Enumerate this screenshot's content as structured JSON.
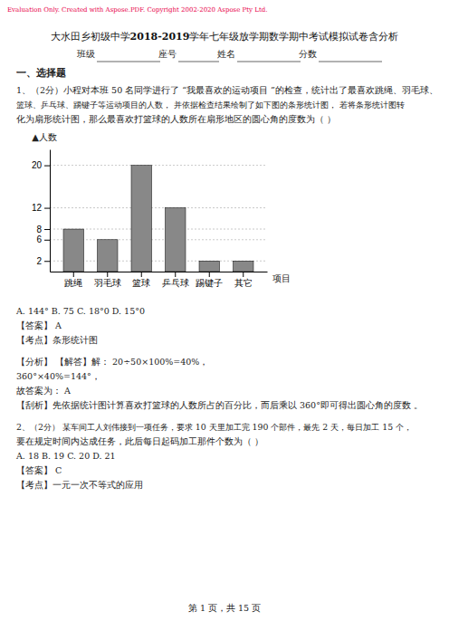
{
  "watermark": "Evaluation Only. Created with Aspose.PDF. Copyright 2002-2020 Aspose Pty Ltd.",
  "title": [
    "大水田乡初级中学",
    "2018-2019",
    "学年七年级放学期数学期中考试模拟试卷含分析"
  ],
  "form_labels": [
    "班级",
    "座号",
    "姓名",
    "分数"
  ],
  "section": "一、选择题",
  "lines_before_chart": [
    "1、（2分）小程对本班 50 名同学进行了 “我最喜欢的运动项目 ”的检查，统计出了最喜欢跳绳、羽毛球、",
    "篮球、乒乓球、踢键子等运动项目的人数，  并依据检查结果绘制了如下图的条形统计图，     若将条形统计图转",
    "化为扇形统计图，那么最喜欢打篮球的人数所在扇形地区的圆心角的度数为（          ）"
  ],
  "lines_after_chart": [
    "A. 144°             B. 75             C. 18°0             D. 15°0",
    "【答案】 A",
    "【考点】条形统计图",
    "【分析】 【解答】解：  20÷50×100%=40%，",
    "360°×40%=144°，",
    "故答案为： A",
    "【刮析】先依据统计图计算喜欢打篮球的人数所占的百分比，而后乘以       360°即可得出圆心角的度数  。",
    "2、（2分） 某车间工人刘伟接到一项任务，要求   10 天里加工完 190 个部件，最先 2 天，每日加工 15 个，",
    "要在规定时间内达成任务，此后每日起码加工那件个数为（    ）",
    "A. 18             B. 19             C. 20             D. 21",
    "【答案】 C",
    "【考点】一元一次不等式的应用"
  ],
  "footer": "第 1 页，共 15 页",
  "chart_data": {
    "type": "bar",
    "y_label": "▲人数",
    "x_label": "项目",
    "categories": [
      "跳绳",
      "羽毛球",
      "篮球",
      "乒乓球",
      "踢键子",
      "其它"
    ],
    "values": [
      8,
      6,
      20,
      12,
      2,
      2
    ],
    "color": "#888888",
    "ylim": [
      0,
      23
    ],
    "yticks": [
      2,
      6,
      8,
      12,
      20
    ],
    "grid": true
  }
}
